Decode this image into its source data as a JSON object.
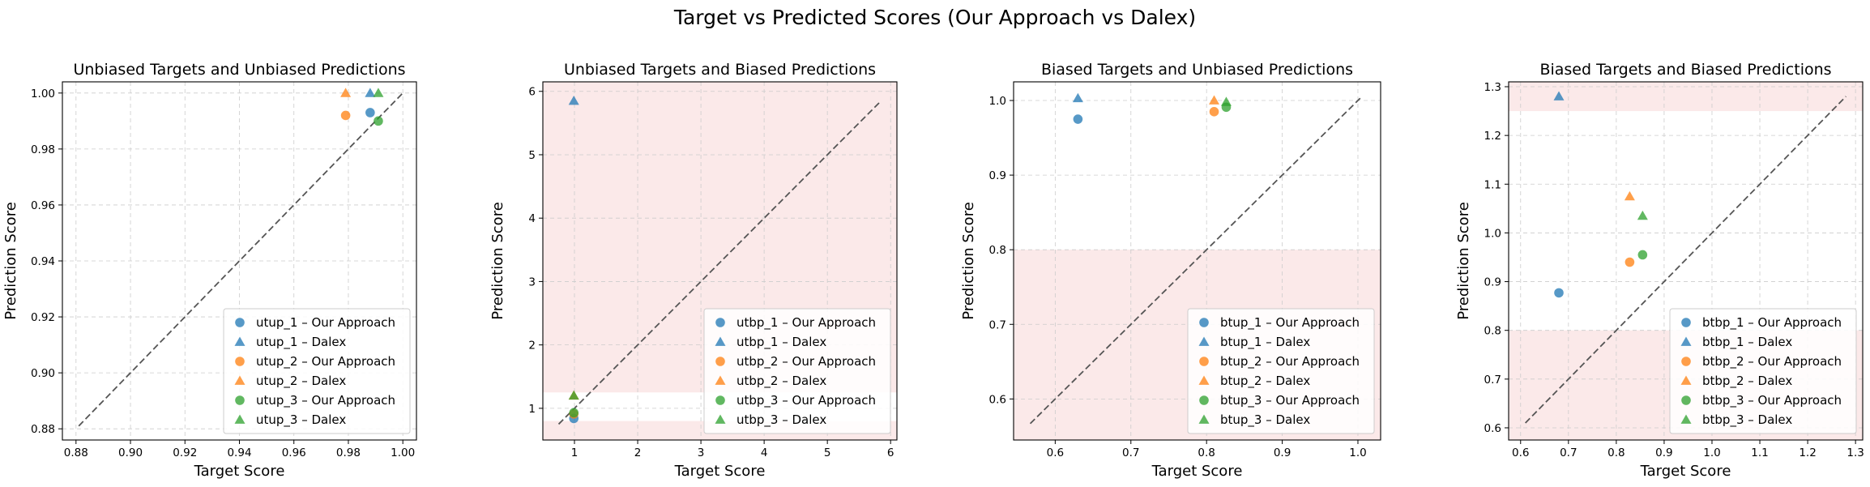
{
  "suptitle": "Target vs Predicted Scores (Our Approach vs Dalex)",
  "colors": {
    "s1": "#1f77b4",
    "s2": "#ff7f0e",
    "s3": "#2ca02c",
    "shade": "#f8d7d7",
    "diag": "#555555",
    "grid": "#cccccc"
  },
  "chart_data": [
    {
      "type": "scatter",
      "title": "Unbiased Targets and Unbiased Predictions",
      "xlabel": "Target Score",
      "ylabel": "Prediction Score",
      "xlim": [
        0.875,
        1.005
      ],
      "ylim": [
        0.876,
        1.004
      ],
      "xticks": [
        0.88,
        0.9,
        0.92,
        0.94,
        0.96,
        0.98,
        1.0
      ],
      "xticklabels": [
        "0.88",
        "0.90",
        "0.92",
        "0.94",
        "0.96",
        "0.98",
        "1.00"
      ],
      "yticks": [
        0.88,
        0.9,
        0.92,
        0.94,
        0.96,
        0.98,
        1.0
      ],
      "yticklabels": [
        "0.88",
        "0.90",
        "0.92",
        "0.94",
        "0.96",
        "0.98",
        "1.00"
      ],
      "diagonal": [
        0.881,
        1.0
      ],
      "shaded_y": [],
      "grid": true,
      "legend_position": "lower-right",
      "series": [
        {
          "name": "utup_1 – Our Approach",
          "marker": "circle",
          "color": "s1",
          "points": [
            [
              0.988,
              0.993
            ]
          ]
        },
        {
          "name": "utup_1 – Dalex",
          "marker": "triangle",
          "color": "s1",
          "points": [
            [
              0.988,
              1.0
            ]
          ]
        },
        {
          "name": "utup_2 – Our Approach",
          "marker": "circle",
          "color": "s2",
          "points": [
            [
              0.979,
              0.992
            ]
          ]
        },
        {
          "name": "utup_2 – Dalex",
          "marker": "triangle",
          "color": "s2",
          "points": [
            [
              0.979,
              1.0
            ]
          ]
        },
        {
          "name": "utup_3 – Our Approach",
          "marker": "circle",
          "color": "s3",
          "points": [
            [
              0.991,
              0.99
            ]
          ]
        },
        {
          "name": "utup_3 – Dalex",
          "marker": "triangle",
          "color": "s3",
          "points": [
            [
              0.991,
              1.0
            ]
          ]
        }
      ]
    },
    {
      "type": "scatter",
      "title": "Unbiased Targets and Biased Predictions",
      "xlabel": "Target Score",
      "ylabel": "Prediction Score",
      "xlim": [
        0.5,
        6.1
      ],
      "ylim": [
        0.5,
        6.15
      ],
      "xticks": [
        1,
        2,
        3,
        4,
        5,
        6
      ],
      "xticklabels": [
        "1",
        "2",
        "3",
        "4",
        "5",
        "6"
      ],
      "yticks": [
        1,
        2,
        3,
        4,
        5,
        6
      ],
      "yticklabels": [
        "1",
        "2",
        "3",
        "4",
        "5",
        "6"
      ],
      "diagonal": [
        0.75,
        5.85
      ],
      "shaded_y": [
        [
          0.5,
          0.8
        ],
        [
          1.25,
          6.15
        ]
      ],
      "grid": true,
      "legend_position": "lower-right",
      "series": [
        {
          "name": "utbp_1 – Our Approach",
          "marker": "circle",
          "color": "s1",
          "points": [
            [
              0.99,
              0.84
            ]
          ]
        },
        {
          "name": "utbp_1 – Dalex",
          "marker": "triangle",
          "color": "s1",
          "points": [
            [
              0.99,
              5.85
            ]
          ]
        },
        {
          "name": "utbp_2 – Our Approach",
          "marker": "circle",
          "color": "s2",
          "points": [
            [
              0.99,
              0.91
            ]
          ]
        },
        {
          "name": "utbp_2 – Dalex",
          "marker": "triangle",
          "color": "s2",
          "points": [
            [
              0.99,
              1.2
            ]
          ]
        },
        {
          "name": "utbp_3 – Our Approach",
          "marker": "circle",
          "color": "s3",
          "points": [
            [
              0.99,
              0.93
            ]
          ]
        },
        {
          "name": "utbp_3 – Dalex",
          "marker": "triangle",
          "color": "s3",
          "points": [
            [
              0.99,
              1.2
            ]
          ]
        }
      ]
    },
    {
      "type": "scatter",
      "title": "Biased Targets and Unbiased Predictions",
      "xlabel": "Target Score",
      "ylabel": "Prediction Score",
      "xlim": [
        0.545,
        1.03
      ],
      "ylim": [
        0.545,
        1.025
      ],
      "xticks": [
        0.6,
        0.7,
        0.8,
        0.9,
        1.0
      ],
      "xticklabels": [
        "0.6",
        "0.7",
        "0.8",
        "0.9",
        "1.0"
      ],
      "yticks": [
        0.6,
        0.7,
        0.8,
        0.9,
        1.0
      ],
      "yticklabels": [
        "0.6",
        "0.7",
        "0.8",
        "0.9",
        "1.0"
      ],
      "diagonal": [
        0.567,
        1.003
      ],
      "shaded_y": [
        [
          0.545,
          0.8
        ]
      ],
      "grid": true,
      "legend_position": "lower-right",
      "series": [
        {
          "name": "btup_1 – Our Approach",
          "marker": "circle",
          "color": "s1",
          "points": [
            [
              0.63,
              0.975
            ]
          ]
        },
        {
          "name": "btup_1 – Dalex",
          "marker": "triangle",
          "color": "s1",
          "points": [
            [
              0.63,
              1.003
            ]
          ]
        },
        {
          "name": "btup_2 – Our Approach",
          "marker": "circle",
          "color": "s2",
          "points": [
            [
              0.81,
              0.985
            ]
          ]
        },
        {
          "name": "btup_2 – Dalex",
          "marker": "triangle",
          "color": "s2",
          "points": [
            [
              0.81,
              1.0
            ]
          ]
        },
        {
          "name": "btup_3 – Our Approach",
          "marker": "circle",
          "color": "s3",
          "points": [
            [
              0.826,
              0.991
            ]
          ]
        },
        {
          "name": "btup_3 – Dalex",
          "marker": "triangle",
          "color": "s3",
          "points": [
            [
              0.826,
              0.998
            ]
          ]
        }
      ]
    },
    {
      "type": "scatter",
      "title": "Biased Targets and Biased Predictions",
      "xlabel": "Target Score",
      "ylabel": "Prediction Score",
      "xlim": [
        0.575,
        1.315
      ],
      "ylim": [
        0.575,
        1.31
      ],
      "xticks": [
        0.6,
        0.7,
        0.8,
        0.9,
        1.0,
        1.1,
        1.2,
        1.3
      ],
      "xticklabels": [
        "0.6",
        "0.7",
        "0.8",
        "0.9",
        "1.0",
        "1.1",
        "1.2",
        "1.3"
      ],
      "yticks": [
        0.6,
        0.7,
        0.8,
        0.9,
        1.0,
        1.1,
        1.2,
        1.3
      ],
      "yticklabels": [
        "0.6",
        "0.7",
        "0.8",
        "0.9",
        "1.0",
        "1.1",
        "1.2",
        "1.3"
      ],
      "diagonal": [
        0.61,
        1.28
      ],
      "shaded_y": [
        [
          0.575,
          0.8
        ],
        [
          1.25,
          1.31
        ]
      ],
      "grid": true,
      "legend_position": "lower-right",
      "series": [
        {
          "name": "btbp_1 – Our Approach",
          "marker": "circle",
          "color": "s1",
          "points": [
            [
              0.68,
              0.877
            ]
          ]
        },
        {
          "name": "btbp_1 – Dalex",
          "marker": "triangle",
          "color": "s1",
          "points": [
            [
              0.68,
              1.28
            ]
          ]
        },
        {
          "name": "btbp_2 – Our Approach",
          "marker": "circle",
          "color": "s2",
          "points": [
            [
              0.828,
              0.94
            ]
          ]
        },
        {
          "name": "btbp_2 – Dalex",
          "marker": "triangle",
          "color": "s2",
          "points": [
            [
              0.828,
              1.075
            ]
          ]
        },
        {
          "name": "btbp_3 – Our Approach",
          "marker": "circle",
          "color": "s3",
          "points": [
            [
              0.855,
              0.955
            ]
          ]
        },
        {
          "name": "btbp_3 – Dalex",
          "marker": "triangle",
          "color": "s3",
          "points": [
            [
              0.855,
              1.035
            ]
          ]
        }
      ]
    }
  ]
}
